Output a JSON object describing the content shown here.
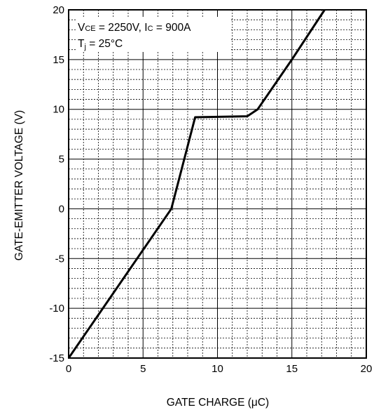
{
  "chart_data": {
    "type": "line",
    "title": "",
    "xlabel": "GATE CHARGE (μC)",
    "ylabel": "GATE-EMITTER VOLTAGE (V)",
    "xlim": [
      0,
      20
    ],
    "ylim": [
      -15,
      20
    ],
    "xticks": [
      0,
      5,
      10,
      15,
      20
    ],
    "yticks": [
      -15,
      -10,
      -5,
      0,
      5,
      10,
      15,
      20
    ],
    "x_tick_labels": [
      "0",
      "5",
      "10",
      "15",
      "20"
    ],
    "y_tick_labels": [
      "-15",
      "-10",
      "-5",
      "0",
      "5",
      "10",
      "15",
      "20"
    ],
    "grid": true,
    "grid_minor": true,
    "annotation": {
      "line1": {
        "v_main": "V",
        "v_sub": "CE",
        "v_rest": " = 2250V, I",
        "i_sub": "C",
        "i_rest": " = 900A"
      },
      "line2": {
        "t_main": "T",
        "t_sub": "j",
        "t_rest": " = 25°C"
      }
    },
    "series": [
      {
        "x": [
          0,
          6.9,
          8.5,
          12.0,
          12.7,
          15.0,
          17.2
        ],
        "y": [
          -15,
          0,
          9.2,
          9.3,
          10.0,
          15.0,
          20.0
        ]
      }
    ],
    "line_color": "#000000"
  }
}
